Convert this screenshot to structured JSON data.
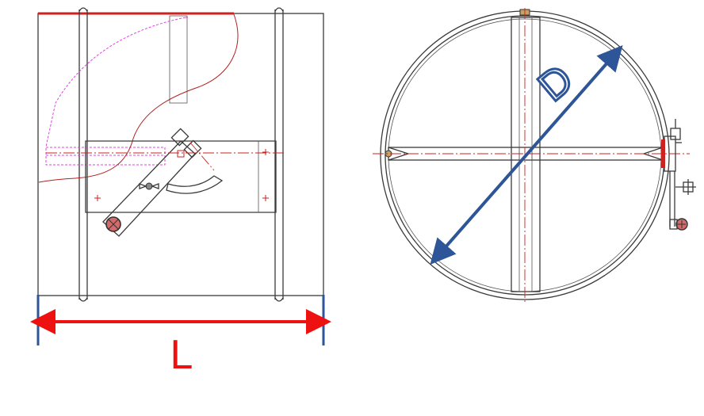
{
  "labels": {
    "length": "L",
    "diameter": "D"
  },
  "colors": {
    "length_dimension": "#ee1111",
    "diameter_dimension": "#2e5597",
    "outline": "#3a3a3a",
    "center_axis": "#cc2222",
    "hidden_line": "#e040e0"
  }
}
